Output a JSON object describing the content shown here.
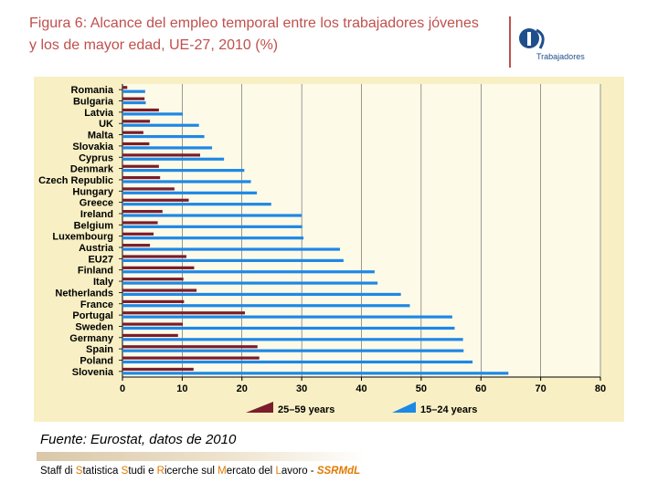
{
  "title": "Figura 6: Alcance del empleo temporal entre los trabajadores jóvenes y los de mayor edad, UE-27, 2010 (%)",
  "logo": {
    "text": "Trabajadores"
  },
  "source": "Fuente: Eurostat, datos de 2010",
  "footer": {
    "parts": [
      {
        "text": "Staff di ",
        "hl": false
      },
      {
        "text": "S",
        "hl": true
      },
      {
        "text": "tatistica ",
        "hl": false
      },
      {
        "text": "S",
        "hl": true
      },
      {
        "text": "tudi e ",
        "hl": false
      },
      {
        "text": "R",
        "hl": true
      },
      {
        "text": "icerche sul ",
        "hl": false
      },
      {
        "text": "M",
        "hl": true
      },
      {
        "text": "ercato del ",
        "hl": false
      },
      {
        "text": "L",
        "hl": true
      },
      {
        "text": "avoro - ",
        "hl": false
      }
    ],
    "tag": "SSRMdL"
  },
  "chart_data": {
    "type": "bar",
    "orientation": "horizontal",
    "title": "Figura 6: Alcance del empleo temporal entre los trabajadores jóvenes y los de mayor edad, UE-27, 2010 (%)",
    "categories": [
      "Romania",
      "Bulgaria",
      "Latvia",
      "UK",
      "Malta",
      "Slovakia",
      "Cyprus",
      "Denmark",
      "Czech Republic",
      "Hungary",
      "Greece",
      "Ireland",
      "Belgium",
      "Luxembourg",
      "Austria",
      "EU27",
      "Finland",
      "Italy",
      "Netherlands",
      "France",
      "Portugal",
      "Sweden",
      "Germany",
      "Spain",
      "Poland",
      "Slovenia"
    ],
    "series": [
      {
        "name": "25–59 years",
        "color": "#7b1d2a",
        "values": [
          0.8,
          3.7,
          6.1,
          4.6,
          3.5,
          4.5,
          13,
          6.1,
          6.3,
          8.7,
          11.1,
          6.7,
          5.9,
          5.2,
          4.6,
          10.7,
          12,
          10.2,
          12.4,
          10.3,
          20.5,
          10.1,
          9.3,
          22.6,
          22.9,
          11.9
        ]
      },
      {
        "name": "15–24 years",
        "color": "#1e88e5",
        "values": [
          3.8,
          3.9,
          10.1,
          12.8,
          13.7,
          15,
          17,
          20.4,
          21.5,
          22.5,
          24.9,
          30,
          30.1,
          30.3,
          36.4,
          37,
          42.2,
          42.7,
          46.6,
          48.1,
          55.2,
          55.6,
          57,
          57.1,
          58.6,
          64.6
        ]
      }
    ],
    "xlim": [
      0,
      80
    ],
    "xticks": [
      0,
      10,
      20,
      30,
      40,
      50,
      60,
      70,
      80
    ],
    "xlabel": "",
    "ylabel": "",
    "legend_position": "bottom"
  }
}
